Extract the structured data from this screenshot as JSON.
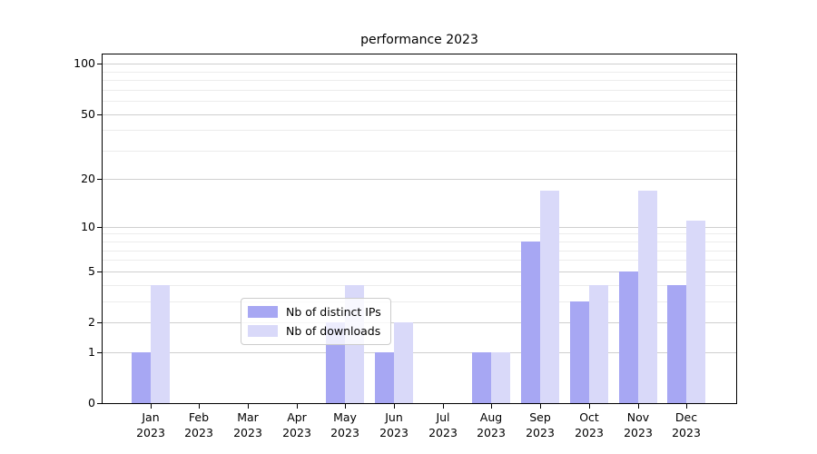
{
  "title": "performance 2023",
  "legend": {
    "entries": [
      {
        "label": "Nb of distinct IPs",
        "color": "#a7a7f3"
      },
      {
        "label": "Nb of downloads",
        "color": "#d9d9f9"
      }
    ],
    "position": "lower center"
  },
  "chart_data": {
    "type": "bar",
    "title": "performance 2023",
    "categories": [
      "Jan 2023",
      "Feb 2023",
      "Mar 2023",
      "Apr 2023",
      "May 2023",
      "Jun 2023",
      "Jul 2023",
      "Aug 2023",
      "Sep 2023",
      "Oct 2023",
      "Nov 2023",
      "Dec 2023"
    ],
    "month_labels": [
      "Jan",
      "Feb",
      "Mar",
      "Apr",
      "May",
      "Jun",
      "Jul",
      "Aug",
      "Sep",
      "Oct",
      "Nov",
      "Dec"
    ],
    "year_label": "2023",
    "series": [
      {
        "name": "Nb of distinct IPs",
        "color": "#a7a7f3",
        "values": [
          1,
          0,
          0,
          0,
          2,
          1,
          0,
          1,
          8,
          3,
          5,
          4
        ]
      },
      {
        "name": "Nb of downloads",
        "color": "#d9d9f9",
        "values": [
          4,
          0,
          0,
          0,
          4,
          2,
          0,
          1,
          17,
          4,
          17,
          11
        ]
      }
    ],
    "xlabel": "",
    "ylabel": "",
    "yscale": "log1p",
    "y_major_ticks": [
      0,
      1,
      2,
      5,
      10,
      20,
      50,
      100
    ],
    "y_minor_ticks": [
      3,
      4,
      6,
      7,
      8,
      9,
      30,
      40,
      60,
      70,
      80,
      90
    ],
    "ylim": [
      0,
      113
    ],
    "grid": true,
    "legend_position": "lower center"
  },
  "colors": {
    "background": "#ffffff",
    "spine": "#000000",
    "grid_major": "#cfcfcf",
    "grid_minor": "#ececec",
    "text": "#000000",
    "bar_distinct_ips": "#a7a7f3",
    "bar_downloads": "#d9d9f9"
  }
}
